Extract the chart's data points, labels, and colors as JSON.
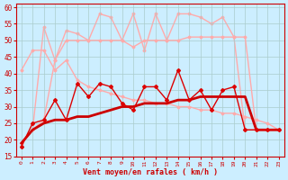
{
  "xlabel": "Vent moyen/en rafales ( km/h )",
  "background_color": "#cceeff",
  "grid_color": "#aacccc",
  "xlim": [
    -0.5,
    23.5
  ],
  "ylim": [
    15,
    61
  ],
  "yticks": [
    15,
    20,
    25,
    30,
    35,
    40,
    45,
    50,
    55,
    60
  ],
  "xticks": [
    0,
    1,
    2,
    3,
    4,
    5,
    6,
    7,
    8,
    9,
    10,
    11,
    12,
    13,
    14,
    15,
    16,
    17,
    18,
    19,
    20,
    21,
    22,
    23
  ],
  "series": [
    {
      "x": [
        0,
        1,
        2,
        3,
        4,
        5,
        6,
        7,
        8,
        9,
        10,
        11,
        12,
        13,
        14,
        15,
        16,
        17,
        18,
        19,
        20,
        21,
        22,
        23
      ],
      "y": [
        19,
        23,
        25,
        26,
        26,
        27,
        27,
        28,
        29,
        30,
        30,
        31,
        31,
        31,
        32,
        32,
        33,
        33,
        33,
        33,
        33,
        23,
        23,
        23
      ],
      "color": "#cc0000",
      "linewidth": 2.0,
      "marker": null,
      "zorder": 5
    },
    {
      "x": [
        0,
        1,
        2,
        3,
        4,
        5,
        6,
        7,
        8,
        9,
        10,
        11,
        12,
        13,
        14,
        15,
        16,
        17,
        18,
        19,
        20,
        21,
        22,
        23
      ],
      "y": [
        18,
        25,
        26,
        32,
        26,
        37,
        33,
        37,
        36,
        31,
        29,
        36,
        36,
        32,
        41,
        32,
        35,
        29,
        35,
        36,
        23,
        23,
        23,
        23
      ],
      "color": "#dd0000",
      "linewidth": 1.0,
      "marker": "D",
      "markersize": 2.0,
      "zorder": 6
    },
    {
      "x": [
        0,
        1,
        2,
        3,
        4,
        5,
        6,
        7,
        8,
        9,
        10,
        11,
        12,
        13,
        14,
        15,
        16,
        17,
        18,
        19,
        20,
        21,
        22,
        23
      ],
      "y": [
        41,
        47,
        47,
        41,
        44,
        38,
        36,
        35,
        34,
        33,
        32,
        32,
        31,
        31,
        30,
        30,
        29,
        29,
        28,
        28,
        27,
        26,
        25,
        23
      ],
      "color": "#ffaaaa",
      "linewidth": 1.0,
      "marker": "D",
      "markersize": 1.5,
      "zorder": 2
    },
    {
      "x": [
        0,
        1,
        2,
        3,
        4,
        5,
        6,
        7,
        8,
        9,
        10,
        11,
        12,
        13,
        14,
        15,
        16,
        17,
        18,
        19,
        20,
        21,
        22,
        23
      ],
      "y": [
        19,
        23,
        26,
        44,
        50,
        50,
        50,
        50,
        50,
        50,
        48,
        50,
        50,
        50,
        50,
        51,
        51,
        51,
        51,
        51,
        51,
        23,
        23,
        23
      ],
      "color": "#ffaaaa",
      "linewidth": 1.0,
      "marker": "D",
      "markersize": 1.5,
      "zorder": 2
    },
    {
      "x": [
        0,
        1,
        2,
        3,
        4,
        5,
        6,
        7,
        8,
        9,
        10,
        11,
        12,
        13,
        14,
        15,
        16,
        17,
        18,
        19,
        20,
        21,
        22,
        23
      ],
      "y": [
        19,
        23,
        54,
        44,
        53,
        52,
        50,
        58,
        57,
        50,
        58,
        47,
        58,
        50,
        58,
        58,
        57,
        55,
        57,
        51,
        23,
        23,
        23,
        23
      ],
      "color": "#ffaaaa",
      "linewidth": 1.0,
      "marker": "D",
      "markersize": 1.5,
      "zorder": 1
    }
  ]
}
